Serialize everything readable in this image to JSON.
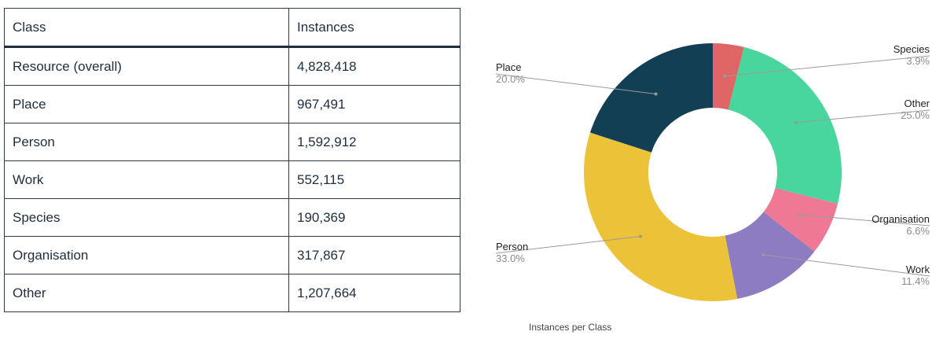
{
  "table": {
    "headers": [
      "Class",
      "Instances"
    ],
    "rows": [
      [
        "Resource (overall)",
        "4,828,418"
      ],
      [
        "Place",
        "967,491"
      ],
      [
        "Person",
        "1,592,912"
      ],
      [
        "Work",
        "552,115"
      ],
      [
        "Species",
        "190,369"
      ],
      [
        "Organisation",
        "317,867"
      ],
      [
        "Other",
        "1,207,664"
      ]
    ]
  },
  "chart_data": {
    "type": "pie",
    "donut": true,
    "title": "Instances per Class",
    "slices": [
      {
        "label": "Species",
        "value": 3.9,
        "pct": "3.9%",
        "color": "#e06666"
      },
      {
        "label": "Other",
        "value": 25.0,
        "pct": "25.0%",
        "color": "#48d69e"
      },
      {
        "label": "Organisation",
        "value": 6.6,
        "pct": "6.6%",
        "color": "#ef7995"
      },
      {
        "label": "Work",
        "value": 11.4,
        "pct": "11.4%",
        "color": "#8e7cc3"
      },
      {
        "label": "Person",
        "value": 33.0,
        "pct": "33.0%",
        "color": "#ecc239"
      },
      {
        "label": "Place",
        "value": 20.0,
        "pct": "20.0%",
        "color": "#133f55"
      }
    ],
    "legend": "none"
  }
}
